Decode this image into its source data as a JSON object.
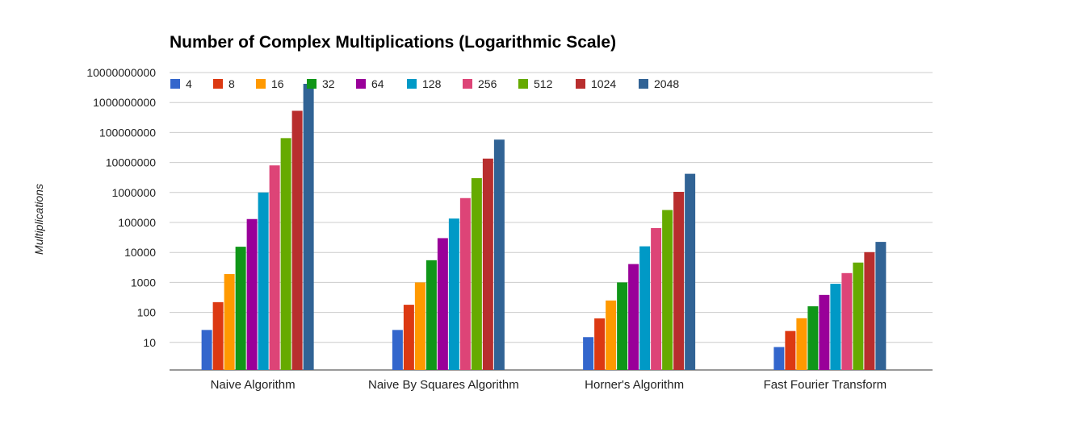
{
  "chart_data": {
    "type": "bar",
    "title": "Number of Complex Multiplications (Logarithmic Scale)",
    "xlabel": "",
    "ylabel": "Multiplications",
    "y_scale": "log",
    "ylim": [
      1.5,
      10000000000
    ],
    "y_ticks": [
      "10",
      "100",
      "1000",
      "10000",
      "100000",
      "1000000",
      "10000000",
      "100000000",
      "1000000000",
      "10000000000"
    ],
    "grid": true,
    "legend_position": "top-left",
    "categories": [
      "Naive Algorithm",
      "Naive By Squares Algorithm",
      "Horner's Algorithm",
      "Fast Fourier Transform"
    ],
    "series": [
      {
        "name": "4",
        "color": "#3366cc",
        "values": [
          26,
          26,
          15,
          7
        ]
      },
      {
        "name": "8",
        "color": "#dc3912",
        "values": [
          220,
          180,
          63,
          24
        ]
      },
      {
        "name": "16",
        "color": "#ff9900",
        "values": [
          1900,
          1000,
          250,
          64
        ]
      },
      {
        "name": "32",
        "color": "#109618",
        "values": [
          15500,
          5500,
          1000,
          160
        ]
      },
      {
        "name": "64",
        "color": "#990099",
        "values": [
          130000,
          30000,
          4100,
          384
        ]
      },
      {
        "name": "128",
        "color": "#0099c6",
        "values": [
          1000000,
          135000,
          16000,
          900
        ]
      },
      {
        "name": "256",
        "color": "#dd4477",
        "values": [
          8000000,
          650000,
          65000,
          2048
        ]
      },
      {
        "name": "512",
        "color": "#66aa00",
        "values": [
          65000000,
          3000000,
          260000,
          4600
        ]
      },
      {
        "name": "1024",
        "color": "#b82e2e",
        "values": [
          530000000,
          13500000,
          1050000,
          10240
        ]
      },
      {
        "name": "2048",
        "color": "#316395",
        "values": [
          4200000000,
          58000000,
          4200000,
          22500
        ]
      }
    ]
  }
}
